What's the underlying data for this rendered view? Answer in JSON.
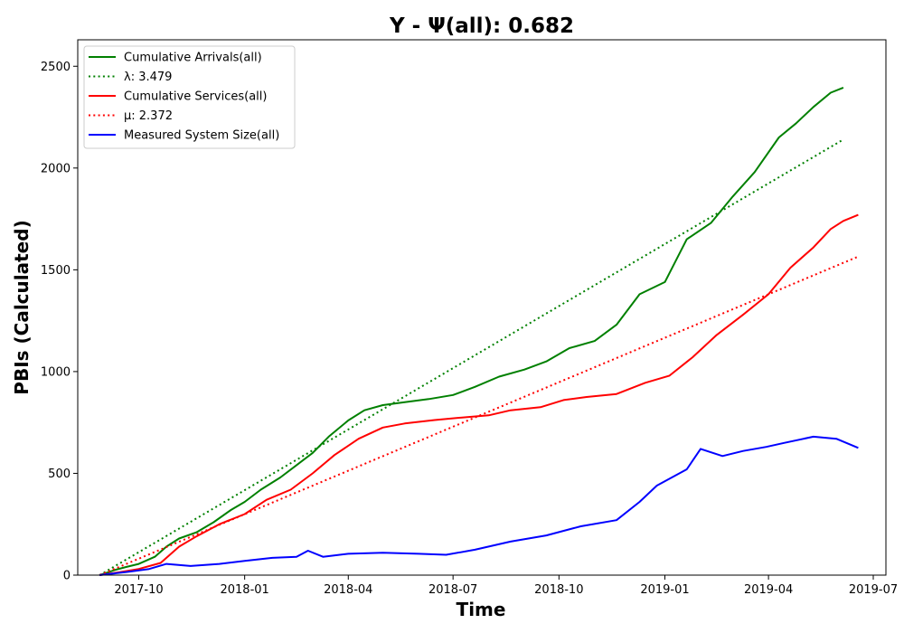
{
  "chart_data": {
    "type": "line",
    "title": "Y -  Ψ(all): 0.682",
    "xlabel": "Time",
    "ylabel": "PBIs (Calculated)",
    "x_range": [
      "2017-08-09",
      "2019-07-12"
    ],
    "ylim": [
      0,
      2630
    ],
    "y_ticks": [
      0,
      500,
      1000,
      1500,
      2000,
      2500
    ],
    "x_ticks": [
      "2017-10",
      "2018-01",
      "2018-04",
      "2018-07",
      "2018-10",
      "2019-01",
      "2019-04",
      "2019-07"
    ],
    "grid": false,
    "legend_position": "top-left",
    "series": [
      {
        "name": "Cumulative Arrivals(all)",
        "style": "solid",
        "color": "#008000",
        "points": [
          [
            "2017-08-28",
            0
          ],
          [
            "2017-09-10",
            25
          ],
          [
            "2017-09-20",
            40
          ],
          [
            "2017-10-01",
            55
          ],
          [
            "2017-10-15",
            90
          ],
          [
            "2017-10-25",
            140
          ],
          [
            "2017-11-05",
            180
          ],
          [
            "2017-11-20",
            210
          ],
          [
            "2017-12-05",
            260
          ],
          [
            "2017-12-20",
            320
          ],
          [
            "2018-01-01",
            360
          ],
          [
            "2018-01-15",
            420
          ],
          [
            "2018-02-01",
            480
          ],
          [
            "2018-02-15",
            540
          ],
          [
            "2018-03-01",
            600
          ],
          [
            "2018-03-15",
            680
          ],
          [
            "2018-04-01",
            760
          ],
          [
            "2018-04-15",
            810
          ],
          [
            "2018-05-01",
            835
          ],
          [
            "2018-05-20",
            850
          ],
          [
            "2018-06-10",
            865
          ],
          [
            "2018-07-01",
            885
          ],
          [
            "2018-07-20",
            925
          ],
          [
            "2018-08-10",
            975
          ],
          [
            "2018-09-01",
            1010
          ],
          [
            "2018-09-20",
            1050
          ],
          [
            "2018-10-10",
            1115
          ],
          [
            "2018-11-01",
            1150
          ],
          [
            "2018-11-20",
            1230
          ],
          [
            "2018-12-10",
            1380
          ],
          [
            "2019-01-01",
            1440
          ],
          [
            "2019-01-20",
            1650
          ],
          [
            "2019-02-10",
            1730
          ],
          [
            "2019-03-01",
            1860
          ],
          [
            "2019-03-20",
            1980
          ],
          [
            "2019-04-10",
            2150
          ],
          [
            "2019-04-25",
            2220
          ],
          [
            "2019-05-10",
            2300
          ],
          [
            "2019-05-25",
            2370
          ],
          [
            "2019-06-05",
            2395
          ]
        ]
      },
      {
        "name": "λ: 3.479",
        "style": "dotted",
        "color": "#008000",
        "points": [
          [
            "2017-08-28",
            0
          ],
          [
            "2019-06-05",
            2140
          ]
        ]
      },
      {
        "name": "Cumulative Services(all)",
        "style": "solid",
        "color": "#ff0000",
        "points": [
          [
            "2017-08-28",
            0
          ],
          [
            "2017-09-15",
            15
          ],
          [
            "2017-10-01",
            30
          ],
          [
            "2017-10-20",
            60
          ],
          [
            "2017-11-05",
            140
          ],
          [
            "2017-11-20",
            190
          ],
          [
            "2017-12-10",
            250
          ],
          [
            "2018-01-01",
            300
          ],
          [
            "2018-01-20",
            370
          ],
          [
            "2018-02-10",
            420
          ],
          [
            "2018-03-01",
            500
          ],
          [
            "2018-03-20",
            590
          ],
          [
            "2018-04-10",
            670
          ],
          [
            "2018-05-01",
            725
          ],
          [
            "2018-05-20",
            745
          ],
          [
            "2018-06-15",
            762
          ],
          [
            "2018-07-10",
            775
          ],
          [
            "2018-08-01",
            785
          ],
          [
            "2018-08-20",
            810
          ],
          [
            "2018-09-15",
            825
          ],
          [
            "2018-10-05",
            860
          ],
          [
            "2018-10-25",
            875
          ],
          [
            "2018-11-20",
            890
          ],
          [
            "2018-12-15",
            945
          ],
          [
            "2019-01-05",
            980
          ],
          [
            "2019-01-25",
            1070
          ],
          [
            "2019-02-15",
            1180
          ],
          [
            "2019-03-10",
            1280
          ],
          [
            "2019-04-01",
            1380
          ],
          [
            "2019-04-20",
            1510
          ],
          [
            "2019-05-10",
            1610
          ],
          [
            "2019-05-25",
            1700
          ],
          [
            "2019-06-05",
            1740
          ],
          [
            "2019-06-18",
            1770
          ]
        ]
      },
      {
        "name": "μ: 2.372",
        "style": "dotted",
        "color": "#ff0000",
        "points": [
          [
            "2017-08-28",
            0
          ],
          [
            "2019-06-18",
            1565
          ]
        ]
      },
      {
        "name": "Measured System Size(all)",
        "style": "solid",
        "color": "#0000ff",
        "points": [
          [
            "2017-08-28",
            0
          ],
          [
            "2017-09-20",
            15
          ],
          [
            "2017-10-10",
            30
          ],
          [
            "2017-10-25",
            55
          ],
          [
            "2017-11-15",
            45
          ],
          [
            "2017-12-10",
            55
          ],
          [
            "2018-01-01",
            70
          ],
          [
            "2018-01-25",
            85
          ],
          [
            "2018-02-15",
            90
          ],
          [
            "2018-02-25",
            120
          ],
          [
            "2018-03-10",
            90
          ],
          [
            "2018-04-01",
            105
          ],
          [
            "2018-05-01",
            110
          ],
          [
            "2018-06-01",
            105
          ],
          [
            "2018-06-25",
            100
          ],
          [
            "2018-07-20",
            125
          ],
          [
            "2018-08-20",
            165
          ],
          [
            "2018-09-20",
            195
          ],
          [
            "2018-10-20",
            240
          ],
          [
            "2018-11-20",
            270
          ],
          [
            "2018-12-10",
            360
          ],
          [
            "2018-12-25",
            440
          ],
          [
            "2019-01-20",
            520
          ],
          [
            "2019-02-01",
            620
          ],
          [
            "2019-02-20",
            585
          ],
          [
            "2019-03-10",
            610
          ],
          [
            "2019-03-30",
            630
          ],
          [
            "2019-04-15",
            650
          ],
          [
            "2019-05-10",
            680
          ],
          [
            "2019-05-30",
            670
          ],
          [
            "2019-06-18",
            625
          ]
        ]
      }
    ]
  }
}
